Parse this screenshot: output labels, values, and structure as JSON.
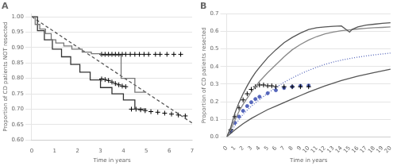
{
  "chart_data": [
    {
      "type": "line",
      "title": "A",
      "xlabel": "Time in years",
      "ylabel": "Proportion of CD patients NOT resected",
      "xlim": [
        0,
        7
      ],
      "ylim": [
        0.6,
        1.01
      ],
      "xticks": [
        0,
        1,
        2,
        3,
        4,
        5,
        6,
        7
      ],
      "yticks": [
        {
          "value": 0.6,
          "label": "0.60"
        },
        0.65,
        {
          "value": 0.7,
          "label": "0.70"
        },
        0.75,
        {
          "value": 0.8,
          "label": "0.80"
        },
        0.85,
        {
          "value": 0.9,
          "label": "0.90"
        },
        0.95,
        {
          "value": 1.0,
          "label": "1.00"
        }
      ],
      "grid": "y",
      "series": [
        {
          "type": "step",
          "color": "#777777",
          "line_style": "solid",
          "x": [
            0,
            0.15,
            0.35,
            0.6,
            0.85,
            1.05,
            1.4,
            1.75,
            2.2,
            2.6,
            3.0,
            3.5,
            3.9,
            4.5,
            5.0
          ],
          "values": [
            1.0,
            0.975,
            0.96,
            0.945,
            0.925,
            0.915,
            0.905,
            0.895,
            0.885,
            0.88,
            0.875,
            0.875,
            0.8,
            0.755,
            0.755
          ]
        },
        {
          "type": "step",
          "color": "#333333",
          "line_style": "solid",
          "x": [
            0,
            0.25,
            0.55,
            0.9,
            1.3,
            1.7,
            2.1,
            2.55,
            3.0,
            3.5,
            4.0,
            4.5,
            5.0
          ],
          "values": [
            1.0,
            0.955,
            0.925,
            0.895,
            0.87,
            0.845,
            0.82,
            0.795,
            0.77,
            0.75,
            0.73,
            0.7,
            0.7
          ]
        },
        {
          "type": "line",
          "color": "#555555",
          "line_style": "dashed",
          "x": [
            0,
            7
          ],
          "values": [
            1.0,
            0.655
          ]
        },
        {
          "type": "scatter",
          "color": "black",
          "marker": "cross",
          "x": [
            3.05,
            3.2,
            3.35,
            3.5,
            3.65,
            3.8,
            3.95,
            4.1,
            4.3,
            4.5,
            4.7,
            4.9,
            5.1,
            5.4,
            5.6,
            5.9,
            6.2,
            6.5
          ],
          "values": [
            0.878,
            0.878,
            0.878,
            0.878,
            0.878,
            0.878,
            0.878,
            0.878,
            0.878,
            0.878,
            0.878,
            0.878,
            0.878,
            0.878,
            0.878,
            0.878,
            0.878,
            0.878
          ]
        },
        {
          "type": "scatter",
          "color": "black",
          "marker": "cross",
          "x": [
            3.05,
            3.2,
            3.35,
            3.5,
            3.65,
            3.8,
            3.95,
            4.1,
            4.35,
            4.55,
            4.75,
            4.95,
            5.2,
            5.5,
            5.8,
            6.1,
            6.4,
            6.7
          ],
          "values": [
            0.798,
            0.796,
            0.793,
            0.788,
            0.783,
            0.779,
            0.775,
            0.773,
            0.7,
            0.7,
            0.698,
            0.695,
            0.692,
            0.69,
            0.687,
            0.684,
            0.681,
            0.678
          ]
        }
      ]
    },
    {
      "type": "line",
      "title": "B",
      "xlabel": "Time in years",
      "ylabel": "Proportion of CD patients resected",
      "xlim": [
        0,
        20
      ],
      "ylim": [
        0,
        0.7
      ],
      "xticks": [
        0,
        1,
        2,
        3,
        4,
        5,
        6,
        7,
        8,
        9,
        10,
        11,
        12,
        13,
        14,
        15,
        16,
        17,
        18,
        19,
        20
      ],
      "yticks": [
        {
          "value": 0,
          "label": "0.0"
        },
        0.1,
        0.2,
        0.3,
        0.4,
        0.5,
        0.6,
        0.7
      ],
      "grid": "y",
      "series": [
        {
          "type": "line",
          "color": "#555555",
          "line_style": "solid",
          "x": [
            0,
            0.5,
            1.0,
            1.5,
            2.0,
            2.5,
            3.0,
            3.5,
            4.0,
            5.0,
            6.0,
            7.0,
            8.0,
            9.0,
            10.0,
            11.0,
            12.0,
            13.0,
            14.0,
            15.0,
            15.3,
            16.0,
            17.0,
            18.0,
            19.0,
            20.0
          ],
          "values": [
            0.0,
            0.055,
            0.135,
            0.195,
            0.245,
            0.29,
            0.33,
            0.365,
            0.395,
            0.45,
            0.495,
            0.535,
            0.565,
            0.59,
            0.61,
            0.62,
            0.625,
            0.628,
            0.63,
            0.595,
            0.61,
            0.625,
            0.635,
            0.64,
            0.645,
            0.648
          ]
        },
        {
          "type": "line",
          "color": "#888888",
          "line_style": "solid",
          "x": [
            0,
            0.5,
            1.0,
            1.5,
            2.0,
            2.5,
            3.0,
            4.0,
            5.0,
            6.0,
            7.0,
            8.0,
            9.0,
            10.0,
            11.0,
            12.0,
            13.0,
            14.0,
            15.0,
            16.0,
            17.0,
            18.0,
            19.0,
            20.0
          ],
          "values": [
            0.0,
            0.04,
            0.095,
            0.145,
            0.185,
            0.22,
            0.255,
            0.315,
            0.365,
            0.41,
            0.455,
            0.495,
            0.525,
            0.55,
            0.57,
            0.585,
            0.595,
            0.603,
            0.608,
            0.613,
            0.617,
            0.62,
            0.622,
            0.625
          ]
        },
        {
          "type": "line",
          "color": "#555555",
          "line_style": "solid",
          "x": [
            0,
            1.0,
            2.0,
            3.0,
            4.0,
            5.0,
            6.0,
            7.0,
            8.0,
            9.0,
            10.0,
            12.0,
            14.0,
            16.0,
            18.0,
            20.0
          ],
          "values": [
            0.0,
            0.04,
            0.075,
            0.105,
            0.13,
            0.155,
            0.175,
            0.195,
            0.215,
            0.235,
            0.255,
            0.29,
            0.32,
            0.345,
            0.365,
            0.385
          ]
        },
        {
          "type": "line",
          "color": "#5566bb",
          "line_style": "dotted",
          "x": [
            0,
            0.5,
            1.0,
            1.5,
            2.0,
            2.5,
            3.0,
            3.5,
            4.0,
            5.0,
            6.0,
            7.0,
            8.0,
            9.0,
            10.0,
            11.0,
            12.0,
            13.0,
            14.0,
            15.0,
            16.0,
            17.0,
            18.0,
            19.0,
            20.0
          ],
          "values": [
            0.0,
            0.025,
            0.065,
            0.098,
            0.128,
            0.152,
            0.174,
            0.193,
            0.212,
            0.248,
            0.28,
            0.31,
            0.335,
            0.358,
            0.378,
            0.396,
            0.412,
            0.425,
            0.436,
            0.445,
            0.453,
            0.46,
            0.466,
            0.471,
            0.476
          ]
        },
        {
          "type": "scatter",
          "color": "black",
          "marker": "cross",
          "x": [
            0.5,
            1.0,
            1.5,
            2.0,
            2.5,
            3.0,
            3.5,
            4.0,
            4.5,
            5.0,
            5.5,
            6.0,
            7.0,
            8.0,
            9.0,
            10.0
          ],
          "values": [
            0.04,
            0.115,
            0.165,
            0.21,
            0.245,
            0.27,
            0.285,
            0.295,
            0.295,
            0.29,
            0.29,
            0.285,
            0.285,
            0.285,
            0.285,
            0.285
          ]
        },
        {
          "type": "scatter",
          "color": "#5566bb",
          "marker": "circle",
          "x": [
            0.5,
            1.0,
            1.5,
            2.0,
            2.5,
            3.0,
            3.5,
            4.0,
            5.0,
            6.0,
            7.0,
            8.0,
            9.0,
            10.0
          ],
          "values": [
            0.03,
            0.08,
            0.115,
            0.148,
            0.175,
            0.197,
            0.215,
            0.228,
            0.248,
            0.265,
            0.278,
            0.285,
            0.29,
            0.292
          ]
        }
      ]
    }
  ]
}
